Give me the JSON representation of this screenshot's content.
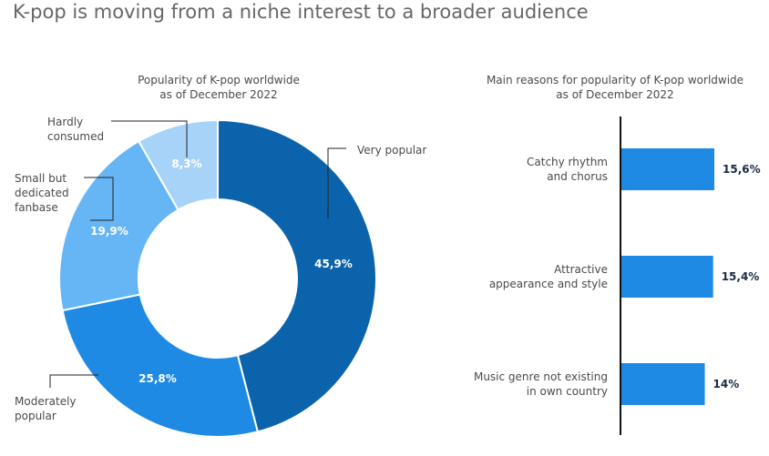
{
  "main_title": "K-pop is moving from a niche interest to a broader audience",
  "chart_data": [
    {
      "type": "pie",
      "title": "Popularity of K-pop worldwide as of December 2022",
      "title_lines": [
        "Popularity of K-pop worldwide",
        "as of December 2022"
      ],
      "slices": [
        {
          "name": "Very popular",
          "name_lines": [
            "Very popular"
          ],
          "value": 45.9,
          "value_label": "45,9%",
          "color": "#0b63ac"
        },
        {
          "name": "Moderately popular",
          "name_lines": [
            "Moderately",
            "popular"
          ],
          "value": 25.8,
          "value_label": "25,8%",
          "color": "#1f8ae3"
        },
        {
          "name": "Small but dedicated fanbase",
          "name_lines": [
            "Small but",
            "dedicated",
            "fanbase"
          ],
          "value": 19.9,
          "value_label": "19,9%",
          "color": "#66b6f5"
        },
        {
          "name": "Hardly consumed",
          "name_lines": [
            "Hardly",
            "consumed"
          ],
          "value": 8.3,
          "value_label": "8,3%",
          "color": "#a7d3f8"
        }
      ]
    },
    {
      "type": "bar",
      "orientation": "horizontal",
      "title": "Main reasons for popularity of K-pop worldwide as of December 2022",
      "title_lines": [
        "Main reasons for popularity of K-pop worldwide",
        "as of December 2022"
      ],
      "categories": [
        "Catchy rhythm and chorus",
        "Attractive appearance and style",
        "Music genre not existing in own country"
      ],
      "category_lines": [
        [
          "Catchy rhythm",
          "and chorus"
        ],
        [
          "Attractive",
          "appearance and style"
        ],
        [
          "Music genre not existing",
          "in own country"
        ]
      ],
      "values": [
        15.6,
        15.4,
        14
      ],
      "value_labels": [
        "15,6%",
        "15,4%",
        "14%"
      ],
      "color": "#1f8ae3",
      "xlim": [
        0,
        16.5
      ]
    }
  ]
}
